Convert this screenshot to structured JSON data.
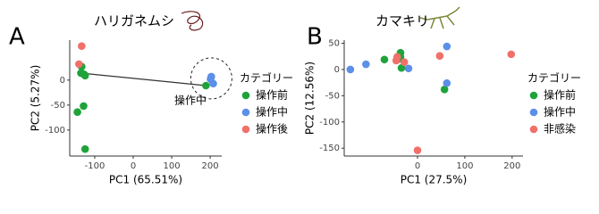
{
  "chart_data": [
    {
      "type": "scatter",
      "panel_label": "A",
      "title": "ハリガネムシ",
      "x_label": "PC1 (65.51%)",
      "y_label": "PC2 (5.27%)",
      "xlim": [
        -165,
        230
      ],
      "ylim": [
        -152,
        80
      ],
      "xticks": [
        -100,
        0,
        100,
        200
      ],
      "yticks": [
        -100,
        -50,
        0
      ],
      "legend_title": "カテゴリー",
      "annotation": "操作中",
      "series": [
        {
          "name": "操作前",
          "color": "#1ea33a",
          "x": [
            -134,
            -136,
            -125,
            -129,
            -127,
            -145,
            -129,
            -125,
            189
          ],
          "values": [
            27,
            14,
            9,
            12,
            11,
            -64,
            -52,
            -138,
            -11
          ]
        },
        {
          "name": "操作中",
          "color": "#5b8fe8",
          "x": [
            203,
            208,
            201
          ],
          "values": [
            7,
            -7,
            2
          ]
        },
        {
          "name": "操作後",
          "color": "#f0706a",
          "x": [
            -134,
            -141
          ],
          "values": [
            68,
            32
          ]
        }
      ]
    },
    {
      "type": "scatter",
      "panel_label": "B",
      "title": "カマキリ",
      "x_label": "PC1 (27.5%)",
      "y_label": "PC2 (12.56%)",
      "xlim": [
        -155,
        223
      ],
      "ylim": [
        -165,
        56
      ],
      "xticks": [
        0,
        100,
        200
      ],
      "yticks": [
        -150,
        -100,
        -50,
        0,
        50
      ],
      "legend_title": "カテゴリー",
      "series": [
        {
          "name": "操作前",
          "color": "#1ea33a",
          "x": [
            -70,
            -36,
            -42,
            -34,
            57,
            -36
          ],
          "values": [
            19,
            32,
            19,
            3,
            -38,
            24
          ]
        },
        {
          "name": "操作中",
          "color": "#5b8fe8",
          "x": [
            -142,
            -109,
            -19,
            62,
            62
          ],
          "values": [
            0,
            10,
            2,
            44,
            -26
          ]
        },
        {
          "name": "非感染",
          "color": "#f0706a",
          "x": [
            -43,
            -45,
            47,
            198,
            0,
            -28
          ],
          "values": [
            24,
            17,
            26,
            29,
            -154,
            14
          ]
        }
      ]
    }
  ]
}
